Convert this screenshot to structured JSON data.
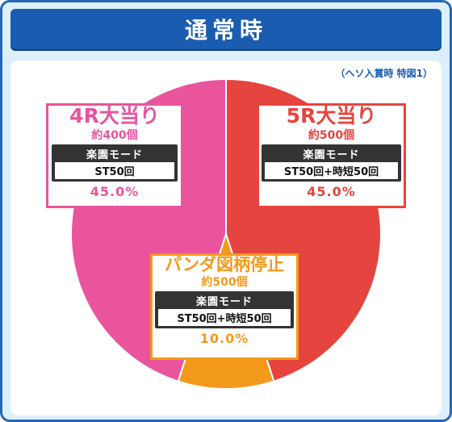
{
  "title": "通常時",
  "note": "（ヘソ入賞時 特図1）",
  "colors": {
    "frame": "#2368b8",
    "title_bg": "#1a5cb0",
    "pink": "#e9549d",
    "red": "#e6443e",
    "orange": "#f39a1c"
  },
  "chart_data": {
    "type": "pie",
    "title": "通常時",
    "slices": [
      {
        "key": "5r",
        "label": "5R大当り",
        "rounds_note": "約500個",
        "mode_title": "楽園モード",
        "mode_detail": "ST50回+時短50回",
        "percent_text": "45.0%",
        "value": 45.0,
        "color": "#e6443e"
      },
      {
        "key": "panda",
        "label": "パンダ図柄停止",
        "rounds_note": "約500個",
        "mode_title": "楽園モード",
        "mode_detail": "ST50回+時短50回",
        "percent_text": "10.0%",
        "value": 10.0,
        "color": "#f39a1c"
      },
      {
        "key": "4r",
        "label": "4R大当り",
        "rounds_note": "約400個",
        "mode_title": "楽園モード",
        "mode_detail": "ST50回",
        "percent_text": "45.0%",
        "value": 45.0,
        "color": "#e9549d"
      }
    ]
  }
}
